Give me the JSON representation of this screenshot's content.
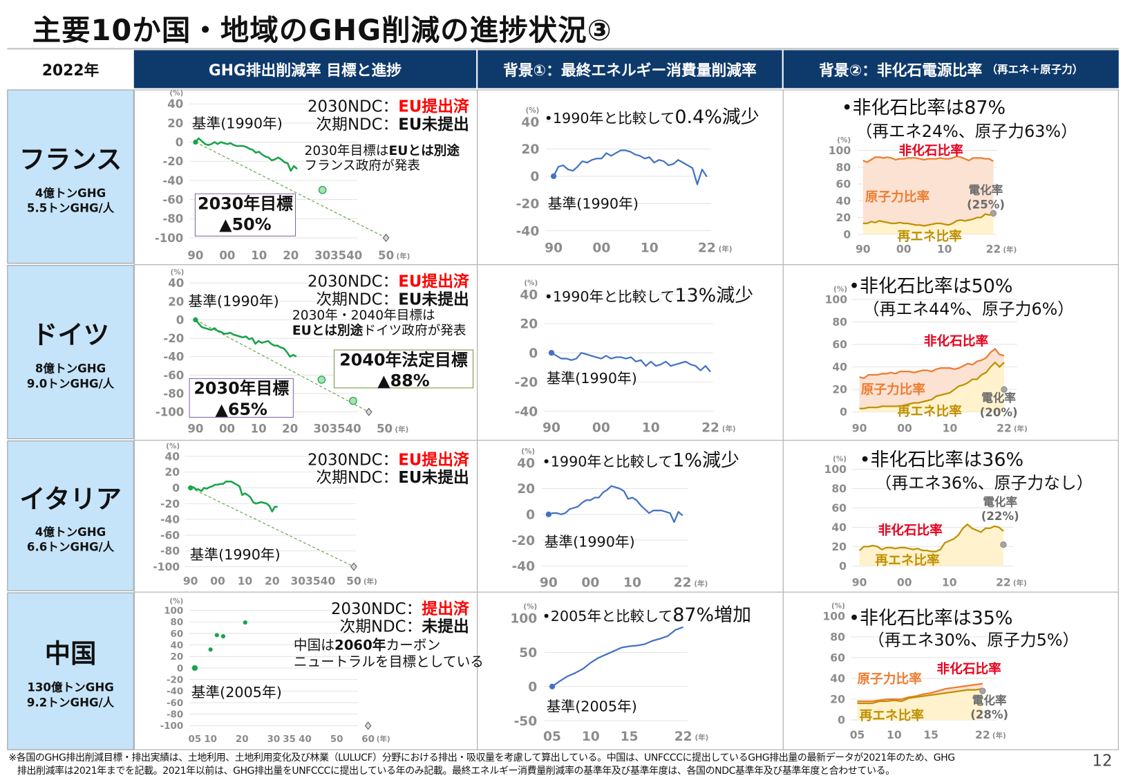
{
  "title": "主要10か国・地域のGHG削減の進捗状況③",
  "header": {
    "year": "2022年",
    "col1": "GHG排出削減率 目標と進捗",
    "col2": "背景①：最終エネルギー消費量削減率",
    "col3": "背景②：非化石電源比率",
    "col3_sub": "（再エネ＋原子力）"
  },
  "rows": [
    {
      "country": "フランス",
      "stat_total": "4億トンGHG",
      "stat_per_capita": "5.5トンGHG/人",
      "ghg": {
        "ndc_label": "2030NDC：",
        "ndc_status": "EU提出済",
        "next_label": "次期NDC：",
        "next_status": "EU未提出",
        "base": "基準(1990年)",
        "note_line1_a": "2030年目標は",
        "note_line1_b": "EUとは別途",
        "note_line2": "フランス政府が発表",
        "targets": [
          {
            "label": "2030年目標",
            "value": "▲50%"
          }
        ]
      },
      "energy": {
        "prefix": "•1990年と比較して",
        "value": "0.4%減少",
        "base": "基準(1990年)"
      },
      "power": {
        "headline": "•非化石比率は87%",
        "sub": "（再エネ24%、原子力63%）",
        "nonfossil_label": "非化石比率",
        "nuclear_label": "原子力比率",
        "renewables_label": "再エネ比率",
        "electrification_label": "電化率",
        "electrification_value": "(25%)"
      }
    },
    {
      "country": "ドイツ",
      "stat_total": "8億トンGHG",
      "stat_per_capita": "9.0トンGHG/人",
      "ghg": {
        "ndc_label": "2030NDC：",
        "ndc_status": "EU提出済",
        "next_label": "次期NDC：",
        "next_status": "EU未提出",
        "base": "基準(1990年)",
        "note_line1": "2030年・2040年目標は",
        "note_line2_a": "EUとは別途",
        "note_line2_b": "ドイツ政府が発表",
        "targets": [
          {
            "label": "2030年目標",
            "value": "▲65%"
          },
          {
            "label": "2040年法定目標",
            "value": "▲88%"
          }
        ]
      },
      "energy": {
        "prefix": "•1990年と比較して",
        "value": "13%減少",
        "base": "基準(1990年)"
      },
      "power": {
        "headline": "•非化石比率は50%",
        "sub": "（再エネ44%、原子力6%）",
        "nonfossil_label": "非化石比率",
        "nuclear_label": "原子力比率",
        "renewables_label": "再エネ比率",
        "electrification_label": "電化率",
        "electrification_value": "(20%)"
      }
    },
    {
      "country": "イタリア",
      "stat_total": "4億トンGHG",
      "stat_per_capita": "6.6トンGHG/人",
      "ghg": {
        "ndc_label": "2030NDC：",
        "ndc_status": "EU提出済",
        "next_label": "次期NDC：",
        "next_status": "EU未提出",
        "base": "基準(1990年)"
      },
      "energy": {
        "prefix": "•1990年と比較して",
        "value": "1%減少",
        "base": "基準(1990年)"
      },
      "power": {
        "headline": "•非化石比率は36%",
        "sub": "（再エネ36%、原子力なし）",
        "nonfossil_label": "非化石比率",
        "renewables_label": "再エネ比率",
        "electrification_label": "電化率",
        "electrification_value": "(22%)"
      }
    },
    {
      "country": "中国",
      "stat_total": "130億トンGHG",
      "stat_per_capita": "9.2トンGHG/人",
      "ghg": {
        "ndc_label": "2030NDC：",
        "ndc_status": "提出済",
        "next_label": "次期NDC：",
        "next_status": "未提出",
        "base": "基準(2005年)",
        "note_line1_a": "中国は",
        "note_line1_b": "2060年",
        "note_line1_c": "カーボン",
        "note_line2": "ニュートラルを目標としている"
      },
      "energy": {
        "prefix": "•2005年と比較して",
        "value": "87%増加",
        "base": "基準(2005年)"
      },
      "power": {
        "headline": "•非化石比率は35%",
        "sub": "（再エネ30%、原子力5%）",
        "nonfossil_label": "非化石比率",
        "nuclear_label": "原子力比率",
        "renewables_label": "再エネ比率",
        "electrification_label": "電化率",
        "electrification_value": "(28%)"
      }
    }
  ],
  "colors": {
    "header": "#0e3a6b",
    "country_cell": "#c5e4f9",
    "ghg_line": "#1aa34a",
    "energy_line": "#4472c4",
    "nonfossil_line": "#ed7d31",
    "nonfossil_fill": "#fbe2d3",
    "renewables_line": "#bf9000",
    "renewables_fill": "#fff2cc",
    "electrification": "#a6a6a6",
    "alert": "#ff0000"
  },
  "chart_data": [
    {
      "type": "line",
      "xlim": [
        1990,
        2050
      ],
      "ylim": [
        -100,
        40
      ],
      "y_unit": "(%)",
      "x_unit": "(年)",
      "yticks": [
        40,
        20,
        0,
        -20,
        -40,
        -60,
        -80,
        -100
      ],
      "xticks": [
        {
          "value": 1990,
          "label": "90"
        },
        {
          "value": 2000,
          "label": "00"
        },
        {
          "value": 2010,
          "label": "10"
        },
        {
          "value": 2020,
          "label": "20"
        },
        {
          "value": 2035,
          "label": "303540"
        },
        {
          "value": 2050,
          "label": "50"
        }
      ],
      "x_start": 1990,
      "emissions": [
        0,
        4,
        1,
        -2,
        -3,
        -2,
        0,
        -2,
        0,
        -1,
        -2,
        -1,
        -3,
        -4,
        -4,
        -4,
        -5,
        -7,
        -8,
        -11,
        -10,
        -13,
        -15,
        -16,
        -19,
        -18,
        -16,
        -18,
        -21,
        -22,
        -30,
        -25,
        -28
      ],
      "targets": [
        {
          "x": 2030,
          "y": -50
        }
      ],
      "pathway": [
        [
          1990,
          0
        ],
        [
          2050,
          -100
        ]
      ],
      "neutral": {
        "x": 2050,
        "y": -100
      }
    },
    {
      "type": "line",
      "xlim": [
        1990,
        2022
      ],
      "ylim": [
        -40,
        40
      ],
      "y_unit": "(%)",
      "x_unit": "(年)",
      "yticks": [
        40,
        20,
        0,
        -20,
        -40
      ],
      "xticks": [
        {
          "value": 1990,
          "label": "90"
        },
        {
          "value": 2000,
          "label": "00"
        },
        {
          "value": 2010,
          "label": "10"
        },
        {
          "value": 2022,
          "label": "22"
        }
      ],
      "x_start": 1990,
      "values": [
        0,
        7,
        8,
        5,
        4,
        7,
        11,
        10,
        12,
        13,
        13,
        17,
        15,
        17,
        19,
        19,
        18,
        16,
        15,
        13,
        14,
        10,
        12,
        11,
        8,
        9,
        12,
        10,
        8,
        6,
        -6,
        5,
        -0.4
      ]
    },
    {
      "type": "area",
      "xlim": [
        1990,
        2022
      ],
      "ylim": [
        0,
        100
      ],
      "y_unit": "(%)",
      "x_unit": "(年)",
      "yticks": [
        100,
        80,
        60,
        40,
        20,
        0
      ],
      "xticks": [
        {
          "value": 1990,
          "label": "90"
        },
        {
          "value": 2000,
          "label": "00"
        },
        {
          "value": 2010,
          "label": "10"
        },
        {
          "value": 2022,
          "label": "22"
        }
      ],
      "x_start": 1990,
      "nonfossil": [
        88,
        86,
        89,
        92,
        92,
        91,
        92,
        91,
        89,
        90,
        90,
        91,
        91,
        91,
        90,
        89,
        90,
        90,
        90,
        91,
        90,
        90,
        91,
        93,
        92,
        90,
        88,
        91,
        91,
        91,
        90,
        90,
        87
      ],
      "renewables": [
        13,
        13,
        15,
        14,
        16,
        15,
        14,
        13,
        13,
        14,
        13,
        13,
        12,
        11,
        11,
        10,
        11,
        12,
        13,
        13,
        12,
        11,
        13,
        16,
        17,
        16,
        17,
        18,
        20,
        20,
        24,
        23,
        24
      ],
      "electrification": {
        "x": 2022,
        "y": 25
      }
    },
    {
      "type": "line",
      "xlim": [
        1990,
        2050
      ],
      "ylim": [
        -100,
        40
      ],
      "y_unit": "(%)",
      "x_unit": "(年)",
      "yticks": [
        40,
        20,
        0,
        -20,
        -40,
        -60,
        -80,
        -100
      ],
      "xticks": [
        {
          "value": 1990,
          "label": "90"
        },
        {
          "value": 2000,
          "label": "00"
        },
        {
          "value": 2010,
          "label": "10"
        },
        {
          "value": 2020,
          "label": "20"
        },
        {
          "value": 2035,
          "label": "303540"
        },
        {
          "value": 2050,
          "label": "50"
        }
      ],
      "x_start": 1990,
      "emissions": [
        0,
        -4,
        -8,
        -9,
        -10,
        -11,
        -9,
        -12,
        -13,
        -15,
        -15,
        -14,
        -16,
        -17,
        -18,
        -19,
        -18,
        -21,
        -20,
        -26,
        -23,
        -25,
        -24,
        -23,
        -26,
        -28,
        -28,
        -30,
        -31,
        -35,
        -40,
        -38,
        -40
      ],
      "targets": [
        {
          "x": 2030,
          "y": -65
        },
        {
          "x": 2040,
          "y": -88
        }
      ],
      "pathway": [
        [
          1990,
          0
        ],
        [
          2045,
          -100
        ]
      ],
      "neutral": {
        "x": 2045,
        "y": -100
      }
    },
    {
      "type": "line",
      "xlim": [
        1990,
        2022
      ],
      "ylim": [
        -40,
        40
      ],
      "y_unit": "(%)",
      "x_unit": "(年)",
      "yticks": [
        40,
        20,
        0,
        -20,
        -40
      ],
      "xticks": [
        {
          "value": 1990,
          "label": "90"
        },
        {
          "value": 2000,
          "label": "00"
        },
        {
          "value": 2010,
          "label": "10"
        },
        {
          "value": 2022,
          "label": "22"
        }
      ],
      "x_start": 1990,
      "values": [
        0,
        -2,
        -4,
        -4,
        -5,
        -4,
        0,
        -1,
        -2,
        -3,
        -4,
        -2,
        -4,
        -3,
        -3,
        -4,
        -3,
        -6,
        -5,
        -9,
        -6,
        -9,
        -8,
        -6,
        -9,
        -8,
        -7,
        -6,
        -8,
        -9,
        -12,
        -9,
        -13
      ]
    },
    {
      "type": "area",
      "xlim": [
        1990,
        2022
      ],
      "ylim": [
        0,
        100
      ],
      "y_unit": "(%)",
      "x_unit": "(年)",
      "yticks": [
        100,
        80,
        60,
        40,
        20,
        0
      ],
      "xticks": [
        {
          "value": 1990,
          "label": "90"
        },
        {
          "value": 2000,
          "label": "00"
        },
        {
          "value": 2010,
          "label": "10"
        },
        {
          "value": 2022,
          "label": "22"
        }
      ],
      "x_start": 1990,
      "nonfossil": [
        31,
        30,
        33,
        33,
        33,
        34,
        34,
        35,
        34,
        36,
        36,
        36,
        35,
        36,
        37,
        37,
        36,
        38,
        39,
        39,
        39,
        38,
        39,
        41,
        43,
        42,
        45,
        46,
        48,
        53,
        56,
        51,
        50
      ],
      "renewables": [
        3,
        3,
        4,
        4,
        4,
        5,
        5,
        5,
        5,
        5,
        6,
        7,
        8,
        8,
        9,
        10,
        11,
        14,
        15,
        16,
        17,
        20,
        23,
        24,
        26,
        29,
        29,
        33,
        35,
        40,
        44,
        40,
        44
      ],
      "electrification": {
        "x": 2022,
        "y": 20
      }
    },
    {
      "type": "line",
      "xlim": [
        1990,
        2050
      ],
      "ylim": [
        -100,
        40
      ],
      "y_unit": "(%)",
      "x_unit": "(年)",
      "yticks": [
        40,
        20,
        0,
        -20,
        -40,
        -60,
        -80,
        -100
      ],
      "xticks": [
        {
          "value": 1990,
          "label": "90"
        },
        {
          "value": 2000,
          "label": "00"
        },
        {
          "value": 2010,
          "label": "10"
        },
        {
          "value": 2020,
          "label": "20"
        },
        {
          "value": 2035,
          "label": "303540"
        },
        {
          "value": 2050,
          "label": "50"
        }
      ],
      "x_start": 1990,
      "emissions": [
        0,
        1,
        -2,
        -2,
        -4,
        0,
        -1,
        1,
        2,
        4,
        4,
        5,
        5,
        8,
        8,
        8,
        6,
        4,
        2,
        -9,
        -7,
        -9,
        -12,
        -18,
        -20,
        -19,
        -18,
        -19,
        -20,
        -23,
        -30,
        -24,
        -24
      ],
      "targets": [],
      "pathway": [
        [
          1990,
          0
        ],
        [
          2050,
          -100
        ]
      ],
      "neutral": {
        "x": 2050,
        "y": -100
      }
    },
    {
      "type": "line",
      "xlim": [
        1990,
        2022
      ],
      "ylim": [
        -40,
        40
      ],
      "y_unit": "(%)",
      "x_unit": "(年)",
      "yticks": [
        40,
        20,
        0,
        -20,
        -40
      ],
      "xticks": [
        {
          "value": 1990,
          "label": "90"
        },
        {
          "value": 2000,
          "label": "00"
        },
        {
          "value": 2010,
          "label": "10"
        },
        {
          "value": 2022,
          "label": "22"
        }
      ],
      "x_start": 1990,
      "values": [
        0,
        1,
        1,
        0,
        1,
        4,
        5,
        6,
        9,
        11,
        11,
        13,
        13,
        17,
        19,
        22,
        21,
        20,
        18,
        12,
        13,
        11,
        7,
        4,
        1,
        3,
        3,
        3,
        2,
        1,
        -6,
        2,
        -1
      ]
    },
    {
      "type": "area",
      "xlim": [
        1990,
        2022
      ],
      "ylim": [
        0,
        100
      ],
      "y_unit": "(%)",
      "x_unit": "(年)",
      "yticks": [
        100,
        80,
        60,
        40,
        20,
        0
      ],
      "xticks": [
        {
          "value": 1990,
          "label": "90"
        },
        {
          "value": 2000,
          "label": "00"
        },
        {
          "value": 2010,
          "label": "10"
        },
        {
          "value": 2022,
          "label": "22"
        }
      ],
      "x_start": 1990,
      "nonfossil": [],
      "renewables": [
        16,
        20,
        20,
        21,
        20,
        17,
        19,
        19,
        18,
        19,
        19,
        18,
        17,
        18,
        16,
        16,
        15,
        15,
        17,
        24,
        26,
        28,
        32,
        39,
        43,
        39,
        37,
        35,
        39,
        39,
        41,
        40,
        36
      ],
      "electrification": {
        "x": 2022,
        "y": 22
      }
    },
    {
      "type": "scatter",
      "xlim": [
        2005,
        2060
      ],
      "ylim": [
        -100,
        100
      ],
      "y_unit": "(%)",
      "x_unit": "(年)",
      "yticks": [
        100,
        80,
        60,
        40,
        20,
        0,
        -20,
        -40,
        -60,
        -80,
        -100
      ],
      "xticks": [
        {
          "value": 2005,
          "label": "05"
        },
        {
          "value": 2010,
          "label": "10"
        },
        {
          "value": 2020,
          "label": "20"
        },
        {
          "value": 2030,
          "label": "30"
        },
        {
          "value": 2035,
          "label": "35"
        },
        {
          "value": 2040,
          "label": "40"
        },
        {
          "value": 2050,
          "label": "50"
        },
        {
          "value": 2060,
          "label": "60"
        }
      ],
      "points": [
        [
          2005,
          0
        ],
        [
          2010,
          32
        ],
        [
          2012,
          57
        ],
        [
          2014,
          55
        ],
        [
          2021,
          79
        ]
      ],
      "targets": [],
      "neutral": {
        "x": 2060,
        "y": -100
      }
    },
    {
      "type": "line",
      "xlim": [
        2005,
        2022
      ],
      "ylim": [
        -50,
        100
      ],
      "y_unit": "(%)",
      "x_unit": "(年)",
      "yticks": [
        100,
        50,
        0,
        -50
      ],
      "xticks": [
        {
          "value": 2005,
          "label": "05"
        },
        {
          "value": 2010,
          "label": "10"
        },
        {
          "value": 2015,
          "label": "15"
        },
        {
          "value": 2022,
          "label": "22"
        }
      ],
      "x_start": 2005,
      "values": [
        0,
        8,
        15,
        20,
        26,
        35,
        42,
        47,
        52,
        57,
        59,
        60,
        62,
        67,
        70,
        74,
        83,
        87
      ]
    },
    {
      "type": "area",
      "xlim": [
        2005,
        2022
      ],
      "ylim": [
        0,
        100
      ],
      "y_unit": "(%)",
      "x_unit": "(年)",
      "yticks": [
        100,
        80,
        60,
        40,
        20,
        0
      ],
      "xticks": [
        {
          "value": 2005,
          "label": "05"
        },
        {
          "value": 2010,
          "label": "10"
        },
        {
          "value": 2015,
          "label": "15"
        },
        {
          "value": 2022,
          "label": "22"
        }
      ],
      "x_start": 2005,
      "nonfossil": [
        18,
        18,
        18,
        19,
        20,
        20,
        20,
        22,
        23,
        25,
        26,
        28,
        30,
        31,
        32,
        33,
        34,
        35
      ],
      "renewables": [
        16,
        16,
        16,
        18,
        18,
        19,
        18,
        21,
        22,
        23,
        24,
        25,
        26,
        27,
        28,
        29,
        29,
        30
      ],
      "electrification": {
        "x": 2022,
        "y": 28
      }
    }
  ],
  "footnote": {
    "line1": "※各国のGHG排出削減目標・排出実績は、土地利用、土地利用変化及び林業（LULUCF）分野における排出・吸収量を考慮して算出している。中国は、UNFCCCに提出しているGHG排出量の最新データが2021年のため、GHG",
    "line2": "排出削減率は2021年までを記載。2021年以前は、GHG排出量をUNFCCCに提出している年のみ記載。最終エネルギー消費量削減率の基準年及び基準年度は、各国のNDC基準年及び基準年度と合わせている。"
  },
  "page_number": "12"
}
